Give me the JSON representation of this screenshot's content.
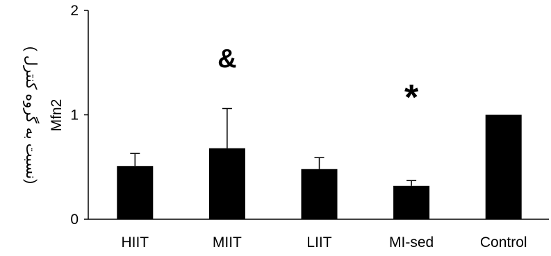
{
  "chart_data": {
    "type": "bar",
    "title": "",
    "xlabel": "",
    "ylabel": {
      "line1": "(نسبت به گروه کنترل )",
      "line2": "Mfn2"
    },
    "categories": [
      "HIIT",
      "MIIT",
      "LIIT",
      "MI-sed",
      "Control"
    ],
    "values": [
      0.51,
      0.68,
      0.48,
      0.32,
      1.0
    ],
    "errors": [
      0.12,
      0.38,
      0.11,
      0.05,
      0.0
    ],
    "ylim": [
      0,
      2
    ],
    "yticks": [
      "0",
      "1",
      "2"
    ],
    "grid": false,
    "bar_color": "#000000",
    "annotations": [
      {
        "category": "MIIT",
        "text": "&"
      },
      {
        "category": "MI-sed",
        "text": "*"
      }
    ]
  }
}
